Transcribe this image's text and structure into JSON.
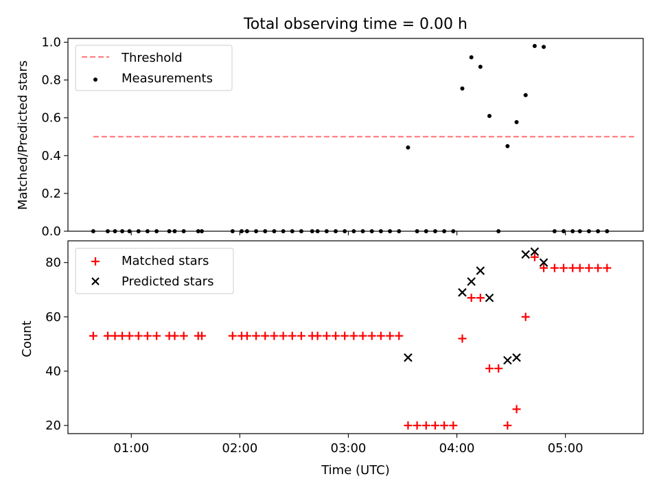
{
  "chart_data": {
    "title": "Total observing time = 0.00 h",
    "xlabel": "Time (UTC)",
    "x_ticks": [
      "01:00",
      "02:00",
      "03:00",
      "04:00",
      "05:00"
    ],
    "x_range": [
      "00:25",
      "05:43"
    ],
    "top": {
      "type": "scatter",
      "ylabel": "Matched/Predicted stars",
      "ylim": [
        0,
        1.02
      ],
      "y_ticks": [
        "0.0",
        "0.2",
        "0.4",
        "0.6",
        "0.8",
        "1.0"
      ],
      "legend_placement": "upper-left",
      "threshold": {
        "name": "Threshold",
        "value": 0.5,
        "x_start": "00:39",
        "x_end": "05:39",
        "color": "#ff7f7f",
        "style": "dashed"
      },
      "measurements": {
        "name": "Measurements",
        "color": "#000000",
        "points": [
          [
            "00:39",
            0
          ],
          [
            "00:47",
            0
          ],
          [
            "00:51",
            0
          ],
          [
            "00:55",
            0
          ],
          [
            "00:59",
            0
          ],
          [
            "01:04",
            0
          ],
          [
            "01:09",
            0
          ],
          [
            "01:14",
            0
          ],
          [
            "01:21",
            0
          ],
          [
            "01:24",
            0
          ],
          [
            "01:29",
            0
          ],
          [
            "01:37",
            0
          ],
          [
            "01:39",
            0
          ],
          [
            "01:56",
            0
          ],
          [
            "02:01",
            0
          ],
          [
            "02:04",
            0
          ],
          [
            "02:09",
            0
          ],
          [
            "02:14",
            0
          ],
          [
            "02:19",
            0
          ],
          [
            "02:24",
            0
          ],
          [
            "02:29",
            0
          ],
          [
            "02:34",
            0
          ],
          [
            "02:40",
            0
          ],
          [
            "02:43",
            0
          ],
          [
            "02:48",
            0
          ],
          [
            "02:53",
            0
          ],
          [
            "02:58",
            0
          ],
          [
            "03:03",
            0
          ],
          [
            "03:08",
            0
          ],
          [
            "03:13",
            0
          ],
          [
            "03:18",
            0
          ],
          [
            "03:23",
            0
          ],
          [
            "03:28",
            0
          ],
          [
            "03:33",
            0.443
          ],
          [
            "03:38",
            0
          ],
          [
            "03:43",
            0
          ],
          [
            "03:48",
            0
          ],
          [
            "03:53",
            0
          ],
          [
            "03:58",
            0
          ],
          [
            "04:03",
            0.755
          ],
          [
            "04:08",
            0.92
          ],
          [
            "04:13",
            0.87
          ],
          [
            "04:18",
            0.61
          ],
          [
            "04:23",
            0
          ],
          [
            "04:28",
            0.45
          ],
          [
            "04:33",
            0.577
          ],
          [
            "04:38",
            0.72
          ],
          [
            "04:43",
            0.98
          ],
          [
            "04:48",
            0.975
          ],
          [
            "04:54",
            0
          ],
          [
            "04:59",
            0
          ],
          [
            "05:04",
            0
          ],
          [
            "05:08",
            0
          ],
          [
            "05:13",
            0
          ],
          [
            "05:18",
            0
          ],
          [
            "05:23",
            0
          ]
        ]
      }
    },
    "bottom": {
      "type": "scatter",
      "ylabel": "Count",
      "ylim": [
        17,
        88
      ],
      "y_ticks": [
        "20",
        "40",
        "60",
        "80"
      ],
      "legend_placement": "upper-left",
      "matched": {
        "name": "Matched stars",
        "color": "#ff0000",
        "marker": "plus",
        "points": [
          [
            "00:39",
            53
          ],
          [
            "00:47",
            53
          ],
          [
            "00:51",
            53
          ],
          [
            "00:55",
            53
          ],
          [
            "00:59",
            53
          ],
          [
            "01:04",
            53
          ],
          [
            "01:09",
            53
          ],
          [
            "01:14",
            53
          ],
          [
            "01:21",
            53
          ],
          [
            "01:24",
            53
          ],
          [
            "01:29",
            53
          ],
          [
            "01:37",
            53
          ],
          [
            "01:39",
            53
          ],
          [
            "01:56",
            53
          ],
          [
            "02:01",
            53
          ],
          [
            "02:04",
            53
          ],
          [
            "02:09",
            53
          ],
          [
            "02:14",
            53
          ],
          [
            "02:19",
            53
          ],
          [
            "02:24",
            53
          ],
          [
            "02:29",
            53
          ],
          [
            "02:34",
            53
          ],
          [
            "02:40",
            53
          ],
          [
            "02:43",
            53
          ],
          [
            "02:48",
            53
          ],
          [
            "02:53",
            53
          ],
          [
            "02:58",
            53
          ],
          [
            "03:03",
            53
          ],
          [
            "03:08",
            53
          ],
          [
            "03:13",
            53
          ],
          [
            "03:18",
            53
          ],
          [
            "03:23",
            53
          ],
          [
            "03:28",
            53
          ],
          [
            "03:33",
            20
          ],
          [
            "03:38",
            20
          ],
          [
            "03:43",
            20
          ],
          [
            "03:48",
            20
          ],
          [
            "03:53",
            20
          ],
          [
            "03:58",
            20
          ],
          [
            "04:03",
            52
          ],
          [
            "04:08",
            67
          ],
          [
            "04:13",
            67
          ],
          [
            "04:18",
            41
          ],
          [
            "04:23",
            41
          ],
          [
            "04:28",
            20
          ],
          [
            "04:33",
            26
          ],
          [
            "04:38",
            60
          ],
          [
            "04:43",
            82
          ],
          [
            "04:48",
            78
          ],
          [
            "04:54",
            78
          ],
          [
            "04:59",
            78
          ],
          [
            "05:04",
            78
          ],
          [
            "05:08",
            78
          ],
          [
            "05:13",
            78
          ],
          [
            "05:18",
            78
          ],
          [
            "05:23",
            78
          ]
        ]
      },
      "predicted": {
        "name": "Predicted stars",
        "color": "#000000",
        "marker": "x",
        "points": [
          [
            "03:33",
            45
          ],
          [
            "04:03",
            69
          ],
          [
            "04:08",
            73
          ],
          [
            "04:13",
            77
          ],
          [
            "04:18",
            67
          ],
          [
            "04:28",
            44
          ],
          [
            "04:33",
            45
          ],
          [
            "04:38",
            83
          ],
          [
            "04:43",
            84
          ],
          [
            "04:48",
            80
          ]
        ]
      }
    }
  }
}
